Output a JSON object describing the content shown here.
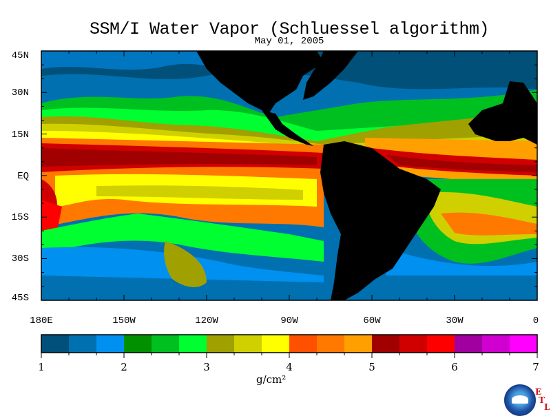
{
  "title": "SSM/I Water Vapor (Schluessel algorithm)",
  "date": "May 01, 2005",
  "lat_labels": [
    "45N",
    "30N",
    "15N",
    "EQ",
    "15S",
    "30S",
    "45S"
  ],
  "lon_labels": [
    "180E",
    "150W",
    "120W",
    "90W",
    "60W",
    "30W",
    "0"
  ],
  "colorbar": {
    "ticks": [
      "1",
      "2",
      "3",
      "4",
      "5",
      "6",
      "7"
    ],
    "units": "g/cm²",
    "colors": [
      "#00507a",
      "#0070b0",
      "#0090f0",
      "#009000",
      "#00c020",
      "#00ff30",
      "#a0a000",
      "#d0d000",
      "#ffff00",
      "#ff5000",
      "#ff7800",
      "#ffa000",
      "#a00000",
      "#d00000",
      "#ff0000",
      "#a000a0",
      "#d000d0",
      "#ff00ff"
    ]
  },
  "land_color": "#000000",
  "logo": {
    "letters": [
      "E",
      "T",
      "L"
    ]
  }
}
